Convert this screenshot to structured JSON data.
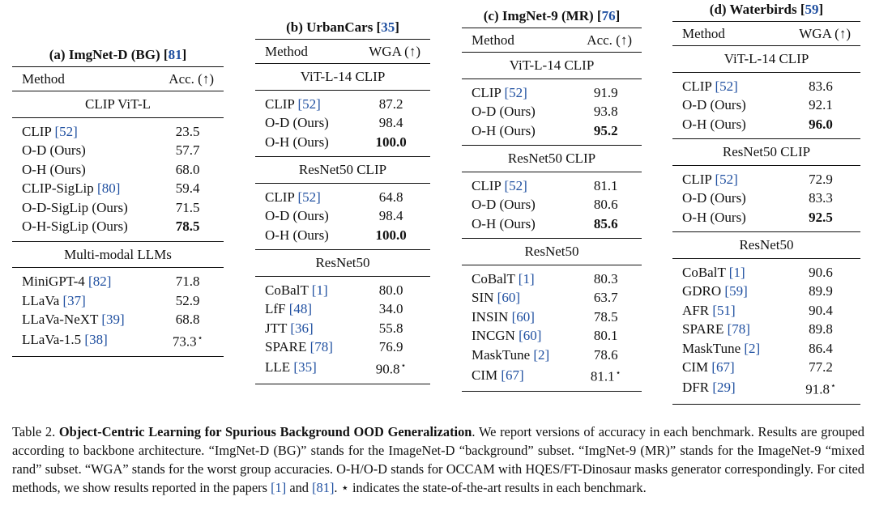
{
  "tables": [
    {
      "id": "a",
      "title_prefix": "(a) ImgNet-D (BG) [",
      "title_cite": "81",
      "title_suffix": "]",
      "col_method": "Method",
      "col_metric": "Acc. (↑)",
      "groups": [
        {
          "name": "CLIP ViT-L",
          "rows": [
            {
              "method": "CLIP ",
              "cite": "[52]",
              "value": "23.5"
            },
            {
              "method": "O-D (Ours)",
              "cite": "",
              "value": "57.7"
            },
            {
              "method": "O-H (Ours)",
              "cite": "",
              "value": "68.0"
            },
            {
              "method": "CLIP-SigLip ",
              "cite": "[80]",
              "value": "59.4"
            },
            {
              "method": "O-D-SigLip (Ours)",
              "cite": "",
              "value": "71.5"
            },
            {
              "method": "O-H-SigLip (Ours)",
              "cite": "",
              "value": "78.5",
              "bold": true
            }
          ]
        },
        {
          "name": "Multi-modal LLMs",
          "rows": [
            {
              "method": "MiniGPT-4 ",
              "cite": "[82]",
              "value": "71.8"
            },
            {
              "method": "LLaVa ",
              "cite": "[37]",
              "value": "52.9"
            },
            {
              "method": "LLaVa-NeXT ",
              "cite": "[39]",
              "value": "68.8"
            },
            {
              "method": "LLaVa-1.5 ",
              "cite": "[38]",
              "value": "73.3",
              "star": "⋆"
            }
          ]
        }
      ]
    },
    {
      "id": "b",
      "title_prefix": "(b) UrbanCars [",
      "title_cite": "35",
      "title_suffix": "]",
      "col_method": "Method",
      "col_metric": "WGA (↑)",
      "groups": [
        {
          "name": "ViT-L-14 CLIP",
          "rows": [
            {
              "method": "CLIP ",
              "cite": "[52]",
              "value": "87.2"
            },
            {
              "method": "O-D (Ours)",
              "cite": "",
              "value": "98.4"
            },
            {
              "method": "O-H (Ours)",
              "cite": "",
              "value": "100.0",
              "bold": true
            }
          ]
        },
        {
          "name": "ResNet50 CLIP",
          "rows": [
            {
              "method": "CLIP ",
              "cite": "[52]",
              "value": "64.8"
            },
            {
              "method": "O-D (Ours)",
              "cite": "",
              "value": "98.4"
            },
            {
              "method": "O-H (Ours)",
              "cite": "",
              "value": "100.0",
              "bold": true
            }
          ]
        },
        {
          "name": "ResNet50",
          "rows": [
            {
              "method": "CoBalT ",
              "cite": "[1]",
              "value": "80.0"
            },
            {
              "method": "LfF ",
              "cite": "[48]",
              "value": "34.0"
            },
            {
              "method": "JTT ",
              "cite": "[36]",
              "value": "55.8"
            },
            {
              "method": "SPARE ",
              "cite": "[78]",
              "value": "76.9"
            },
            {
              "method": "LLE ",
              "cite": "[35]",
              "value": "90.8",
              "star": "⋆"
            }
          ]
        }
      ]
    },
    {
      "id": "c",
      "title_prefix": "(c) ImgNet-9 (MR) [",
      "title_cite": "76",
      "title_suffix": "]",
      "col_method": "Method",
      "col_metric": "Acc. (↑)",
      "groups": [
        {
          "name": "ViT-L-14 CLIP",
          "rows": [
            {
              "method": "CLIP ",
              "cite": "[52]",
              "value": "91.9"
            },
            {
              "method": "O-D (Ours)",
              "cite": "",
              "value": "93.8"
            },
            {
              "method": "O-H (Ours)",
              "cite": "",
              "value": "95.2",
              "bold": true
            }
          ]
        },
        {
          "name": "ResNet50 CLIP",
          "rows": [
            {
              "method": "CLIP ",
              "cite": "[52]",
              "value": "81.1"
            },
            {
              "method": "O-D (Ours)",
              "cite": "",
              "value": "80.6"
            },
            {
              "method": "O-H (Ours)",
              "cite": "",
              "value": "85.6",
              "bold": true
            }
          ]
        },
        {
          "name": "ResNet50",
          "rows": [
            {
              "method": "CoBalT ",
              "cite": "[1]",
              "value": "80.3"
            },
            {
              "method": "SIN ",
              "cite": "[60]",
              "value": "63.7"
            },
            {
              "method": "INSIN ",
              "cite": "[60]",
              "value": "78.5"
            },
            {
              "method": "INCGN ",
              "cite": "[60]",
              "value": "80.1"
            },
            {
              "method": "MaskTune ",
              "cite": "[2]",
              "value": "78.6"
            },
            {
              "method": "CIM ",
              "cite": "[67]",
              "value": "81.1",
              "star": "⋆"
            }
          ]
        }
      ]
    },
    {
      "id": "d",
      "title_prefix": "(d) Waterbirds [",
      "title_cite": "59",
      "title_suffix": "]",
      "col_method": "Method",
      "col_metric": "WGA (↑)",
      "groups": [
        {
          "name": "ViT-L-14 CLIP",
          "rows": [
            {
              "method": "CLIP ",
              "cite": "[52]",
              "value": "83.6"
            },
            {
              "method": "O-D (Ours)",
              "cite": "",
              "value": "92.1"
            },
            {
              "method": "O-H (Ours)",
              "cite": "",
              "value": "96.0",
              "bold": true
            }
          ]
        },
        {
          "name": "ResNet50 CLIP",
          "rows": [
            {
              "method": "CLIP ",
              "cite": "[52]",
              "value": "72.9"
            },
            {
              "method": "O-D (Ours)",
              "cite": "",
              "value": "83.3"
            },
            {
              "method": "O-H (Ours)",
              "cite": "",
              "value": "92.5",
              "bold": true
            }
          ]
        },
        {
          "name": "ResNet50",
          "rows": [
            {
              "method": "CoBalT ",
              "cite": "[1]",
              "value": "90.6"
            },
            {
              "method": "GDRO ",
              "cite": "[59]",
              "value": "89.9"
            },
            {
              "method": "AFR ",
              "cite": "[51]",
              "value": "90.4"
            },
            {
              "method": "SPARE ",
              "cite": "[78]",
              "value": "89.8"
            },
            {
              "method": "MaskTune ",
              "cite": "[2]",
              "value": "86.4"
            },
            {
              "method": "CIM ",
              "cite": "[67]",
              "value": "77.2"
            },
            {
              "method": "DFR ",
              "cite": "[29]",
              "value": "91.8",
              "star": "⋆"
            }
          ]
        }
      ]
    }
  ],
  "caption": {
    "label": "Table 2. ",
    "title": "Object-Centric Learning for Spurious Background OOD Generalization",
    "part1": ". We report versions of accuracy in each benchmark. Results are grouped according to backbone architecture. “ImgNet-D (BG)” stands for the ImageNet-D “background” subset. “ImgNet-9 (MR)” stands for the ImageNet-9 “mixed rand” subset. “WGA” stands for the worst group accuracies. O-H/O-D stands for OCCAM with HQES/FT-Dinosaur masks generator correspondingly. For cited methods, we show results reported in the papers ",
    "cite1": "[1]",
    "part2": " and ",
    "cite2": "[81]",
    "part3": ". ",
    "star": "⋆",
    "part4": " indicates the state-of-the-art results in each benchmark."
  }
}
